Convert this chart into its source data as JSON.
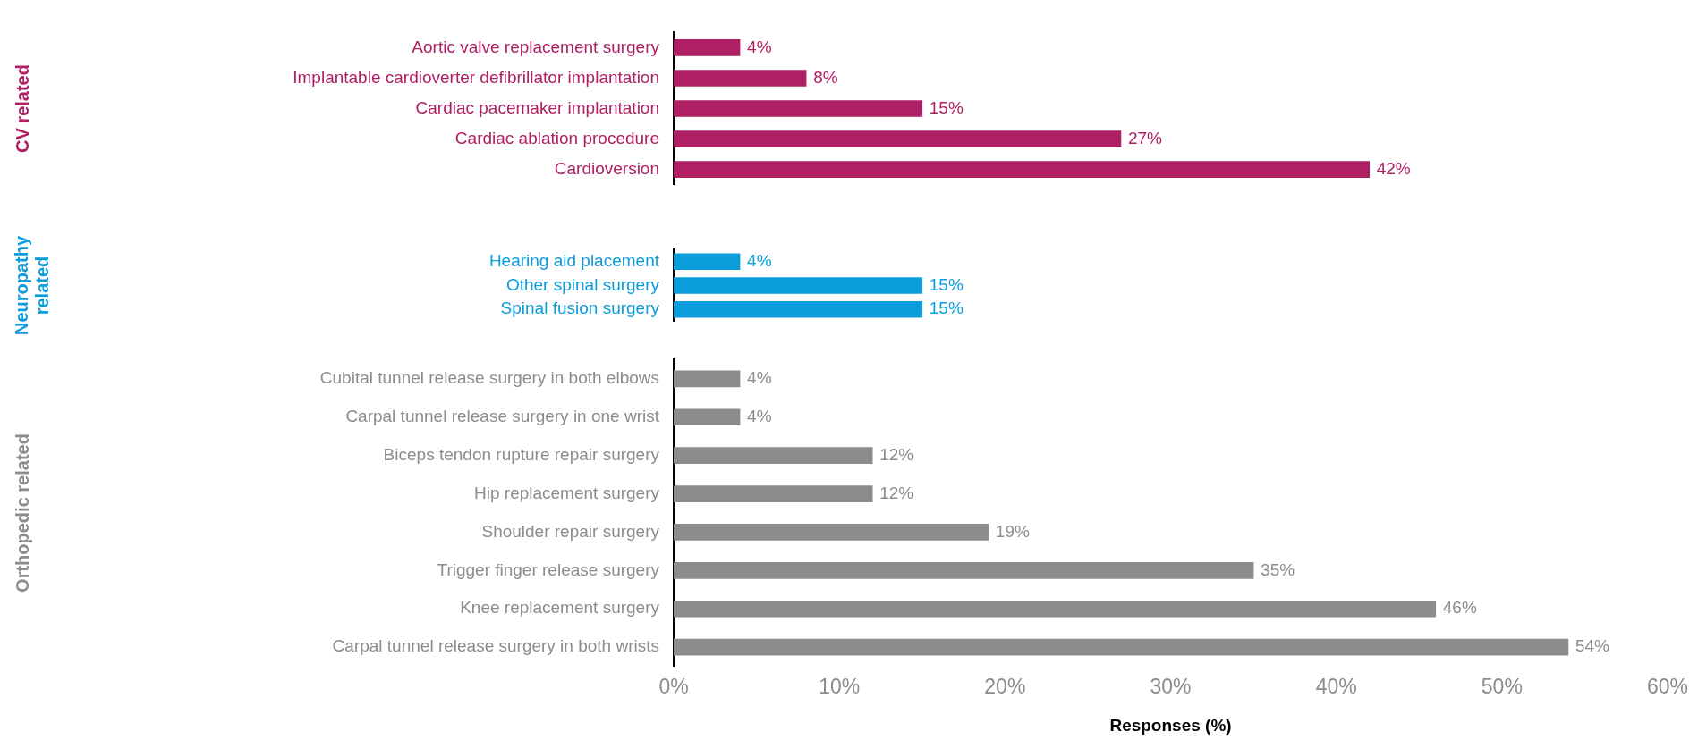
{
  "chart_data": [
    {
      "type": "bar",
      "orientation": "horizontal",
      "ylabel": "CV related",
      "color": "#ae1f63",
      "categories": [
        "Aortic valve replacement surgery",
        "Implantable cardioverter defibrillator implantation",
        "Cardiac pacemaker implantation",
        "Cardiac ablation procedure",
        "Cardioversion"
      ],
      "values": [
        4,
        8,
        15,
        27,
        42
      ],
      "value_labels": [
        "4%",
        "8%",
        "15%",
        "27%",
        "42%"
      ],
      "xlim": [
        0,
        60
      ],
      "tick_labels": "y",
      "grid": false,
      "legend": false
    },
    {
      "type": "bar",
      "orientation": "horizontal",
      "ylabel": "Neuropathy related",
      "color": "#0b9ddb",
      "categories": [
        "Hearing aid placement",
        "Other spinal surgery",
        "Spinal fusion surgery"
      ],
      "values": [
        4,
        15,
        15
      ],
      "value_labels": [
        "4%",
        "15%",
        "15%"
      ],
      "xlim": [
        0,
        60
      ],
      "tick_labels": "y",
      "grid": false,
      "legend": false
    },
    {
      "type": "bar",
      "orientation": "horizontal",
      "ylabel": "Orthopedic related",
      "xlabel": "Responses (%)",
      "color": "#8c8c8c",
      "categories": [
        "Cubital tunnel release surgery in both elbows",
        "Carpal tunnel release surgery in one wrist",
        "Biceps tendon rupture repair surgery",
        "Hip replacement surgery",
        "Shoulder repair surgery",
        "Trigger finger release surgery",
        "Knee replacement surgery",
        "Carpal tunnel release surgery in both wrists"
      ],
      "values": [
        4,
        4,
        12,
        12,
        19,
        35,
        46,
        54
      ],
      "value_labels": [
        "4%",
        "4%",
        "12%",
        "12%",
        "19%",
        "35%",
        "46%",
        "54%"
      ],
      "xlim": [
        0,
        60
      ],
      "xticks": [
        {
          "value": 0,
          "label": "0%"
        },
        {
          "value": 10,
          "label": "10%"
        },
        {
          "value": 20,
          "label": "20%"
        },
        {
          "value": 30,
          "label": "30%"
        },
        {
          "value": 40,
          "label": "40%"
        },
        {
          "value": 50,
          "label": "50%"
        },
        {
          "value": 60,
          "label": "60%"
        }
      ],
      "grid": false,
      "legend": false
    }
  ]
}
